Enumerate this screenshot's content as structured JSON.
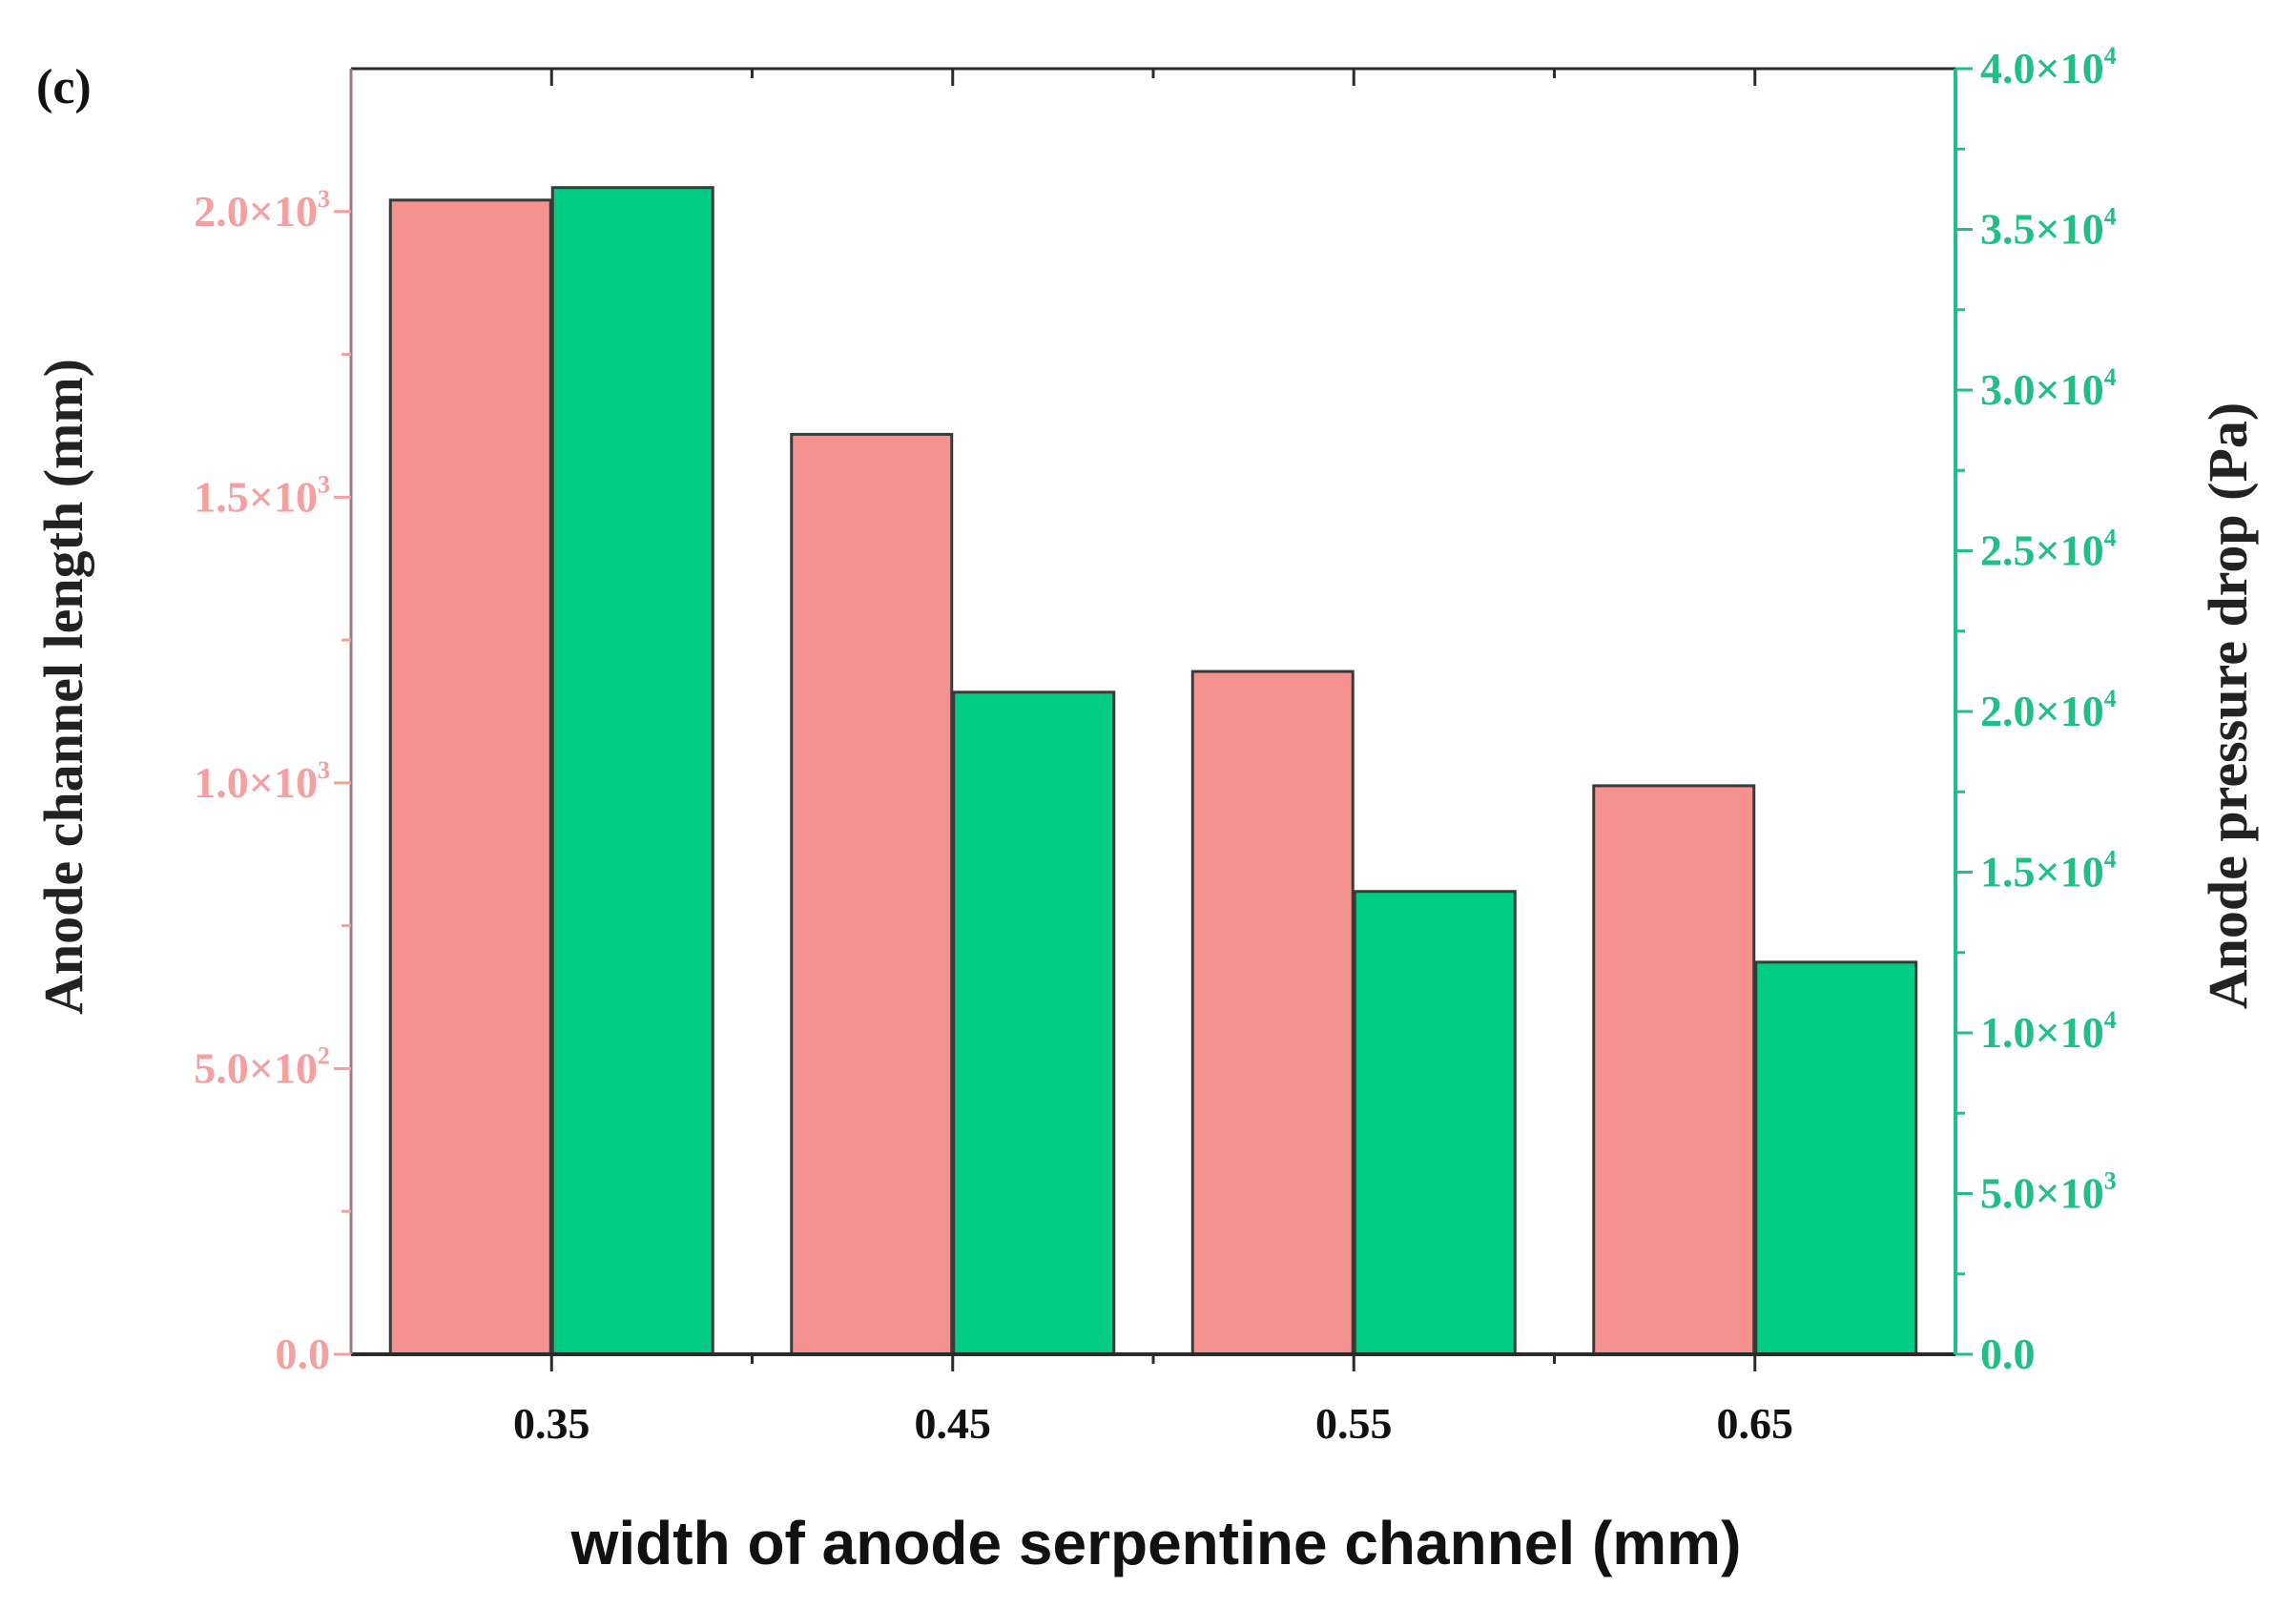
{
  "chart_data": {
    "type": "bar",
    "panel_label": "(c)",
    "xlabel": "width of anode serpentine channel (mm)",
    "categories": [
      "0.35",
      "0.45",
      "0.55",
      "0.65"
    ],
    "series": [
      {
        "name": "Anode channel length",
        "axis": "left",
        "color": "#f4928f",
        "values": [
          2020,
          1610,
          1195,
          995
        ]
      },
      {
        "name": "Anode pressure drop",
        "axis": "right",
        "color": "#00cc84",
        "values": [
          36300,
          20600,
          14400,
          12200
        ]
      }
    ],
    "y_left": {
      "label": "Anode channel length (mm)",
      "ylim": [
        0,
        2250
      ],
      "tick_values": [
        0,
        500,
        1000,
        1500,
        2000
      ],
      "tick_mantissas": [
        "0.0",
        "5.0",
        "1.0",
        "1.5",
        "2.0"
      ],
      "tick_exponents": [
        "",
        "2",
        "3",
        "3",
        "3"
      ],
      "color": "#f4a0a0"
    },
    "y_right": {
      "label": "Anode pressure drop (Pa)",
      "ylim": [
        0,
        40000
      ],
      "tick_values": [
        0,
        5000,
        10000,
        15000,
        20000,
        25000,
        30000,
        35000,
        40000
      ],
      "tick_mantissas": [
        "0.0",
        "5.0",
        "1.0",
        "1.5",
        "2.0",
        "2.5",
        "3.0",
        "3.5",
        "4.0"
      ],
      "tick_exponents": [
        "",
        "3",
        "4",
        "4",
        "4",
        "4",
        "4",
        "4",
        "4"
      ],
      "color": "#1fbf86"
    },
    "grid": false,
    "legend": "none",
    "border_color": "#2b2b2b",
    "left_axis_color": "#a07a7a",
    "right_axis_color": "#1fbf86"
  }
}
